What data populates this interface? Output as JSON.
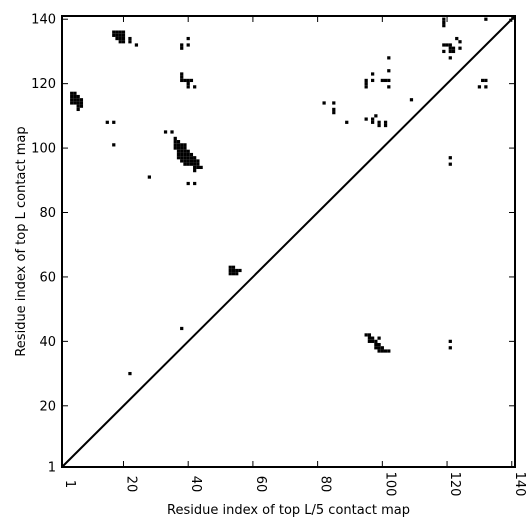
{
  "chart_data": {
    "type": "scatter",
    "title": "",
    "xlabel": "Residue index of top L/5 contact map",
    "ylabel": "Residue index of top L contact map",
    "xlim": [
      1,
      141
    ],
    "ylim": [
      1,
      141
    ],
    "x_ticks": [
      1,
      20,
      40,
      60,
      80,
      100,
      120,
      140
    ],
    "y_ticks": [
      1,
      20,
      40,
      60,
      80,
      100,
      120,
      140
    ],
    "x_tick_labels": [
      "1",
      "20",
      "40",
      "60",
      "80",
      "100",
      "120",
      "140"
    ],
    "y_tick_labels": [
      "1",
      "20",
      "40",
      "60",
      "80",
      "100",
      "120",
      "140"
    ],
    "diagonal": {
      "from": [
        1,
        1
      ],
      "to": [
        141,
        141
      ]
    },
    "grid": false,
    "legend": "none",
    "marker_color": "#000000",
    "series": [
      {
        "region": "upper-left",
        "points": [
          [
            17,
            136
          ],
          [
            18,
            136
          ],
          [
            19,
            136
          ],
          [
            20,
            136
          ],
          [
            17,
            135
          ],
          [
            18,
            135
          ],
          [
            19,
            135
          ],
          [
            20,
            135
          ],
          [
            18,
            134
          ],
          [
            19,
            134
          ],
          [
            20,
            134
          ],
          [
            22,
            134
          ],
          [
            19,
            133
          ],
          [
            20,
            133
          ],
          [
            22,
            133
          ],
          [
            24,
            132
          ],
          [
            4,
            117
          ],
          [
            5,
            117
          ],
          [
            4,
            116
          ],
          [
            5,
            116
          ],
          [
            6,
            116
          ],
          [
            4,
            115
          ],
          [
            5,
            115
          ],
          [
            6,
            115
          ],
          [
            7,
            115
          ],
          [
            4,
            114
          ],
          [
            5,
            114
          ],
          [
            6,
            114
          ],
          [
            7,
            114
          ],
          [
            6,
            113
          ],
          [
            7,
            113
          ],
          [
            6,
            112
          ],
          [
            15,
            108
          ],
          [
            17,
            108
          ],
          [
            17,
            101
          ],
          [
            28,
            91
          ],
          [
            22,
            30
          ],
          [
            33,
            105
          ],
          [
            35,
            105
          ],
          [
            36,
            103
          ],
          [
            36,
            102
          ],
          [
            37,
            102
          ],
          [
            36,
            101
          ],
          [
            37,
            101
          ],
          [
            38,
            101
          ],
          [
            39,
            101
          ],
          [
            36,
            100
          ],
          [
            37,
            100
          ],
          [
            38,
            100
          ],
          [
            39,
            100
          ],
          [
            37,
            99
          ],
          [
            38,
            99
          ],
          [
            39,
            99
          ],
          [
            40,
            99
          ],
          [
            37,
            98
          ],
          [
            38,
            98
          ],
          [
            39,
            98
          ],
          [
            40,
            98
          ],
          [
            41,
            98
          ],
          [
            37,
            97
          ],
          [
            38,
            97
          ],
          [
            39,
            97
          ],
          [
            40,
            97
          ],
          [
            41,
            97
          ],
          [
            42,
            97
          ],
          [
            38,
            96
          ],
          [
            39,
            96
          ],
          [
            40,
            96
          ],
          [
            41,
            96
          ],
          [
            42,
            96
          ],
          [
            43,
            96
          ],
          [
            39,
            95
          ],
          [
            40,
            95
          ],
          [
            41,
            95
          ],
          [
            42,
            95
          ],
          [
            43,
            95
          ],
          [
            42,
            94
          ],
          [
            43,
            94
          ],
          [
            44,
            94
          ],
          [
            42,
            93
          ],
          [
            40,
            89
          ],
          [
            42,
            89
          ],
          [
            38,
            132
          ],
          [
            38,
            131
          ],
          [
            40,
            134
          ],
          [
            40,
            132
          ],
          [
            38,
            123
          ],
          [
            38,
            122
          ],
          [
            38,
            121
          ],
          [
            39,
            121
          ],
          [
            40,
            121
          ],
          [
            41,
            121
          ],
          [
            40,
            120
          ],
          [
            40,
            119
          ],
          [
            42,
            119
          ],
          [
            38,
            44
          ],
          [
            53,
            63
          ],
          [
            54,
            63
          ],
          [
            53,
            62
          ],
          [
            54,
            62
          ],
          [
            55,
            62
          ],
          [
            56,
            62
          ],
          [
            53,
            61
          ],
          [
            54,
            61
          ],
          [
            55,
            61
          ],
          [
            82,
            114
          ],
          [
            85,
            114
          ],
          [
            85,
            112
          ],
          [
            85,
            111
          ],
          [
            89,
            108
          ],
          [
            95,
            121
          ],
          [
            95,
            120
          ],
          [
            95,
            119
          ],
          [
            97,
            123
          ],
          [
            97,
            121
          ],
          [
            102,
            128
          ],
          [
            102,
            124
          ],
          [
            100,
            121
          ],
          [
            101,
            121
          ],
          [
            102,
            121
          ],
          [
            102,
            119
          ],
          [
            109,
            115
          ],
          [
            95,
            109
          ],
          [
            97,
            109
          ],
          [
            98,
            110
          ],
          [
            97,
            108
          ],
          [
            99,
            108
          ],
          [
            99,
            107
          ],
          [
            101,
            108
          ],
          [
            101,
            107
          ],
          [
            119,
            140
          ],
          [
            119,
            139
          ],
          [
            119,
            138
          ],
          [
            132,
            140
          ],
          [
            119,
            132
          ],
          [
            120,
            132
          ],
          [
            121,
            132
          ],
          [
            121,
            131
          ],
          [
            122,
            131
          ],
          [
            121,
            130
          ],
          [
            122,
            130
          ],
          [
            119,
            130
          ],
          [
            123,
            134
          ],
          [
            124,
            133
          ],
          [
            124,
            131
          ],
          [
            121,
            128
          ],
          [
            131,
            121
          ],
          [
            132,
            121
          ],
          [
            130,
            119
          ],
          [
            132,
            119
          ],
          [
            121,
            97
          ],
          [
            121,
            95
          ]
        ]
      },
      {
        "region": "lower-right",
        "points": [
          [
            95,
            42
          ],
          [
            96,
            42
          ],
          [
            96,
            41
          ],
          [
            97,
            41
          ],
          [
            96,
            40
          ],
          [
            97,
            40
          ],
          [
            98,
            40
          ],
          [
            99,
            41
          ],
          [
            98,
            39
          ],
          [
            99,
            39
          ],
          [
            98,
            38
          ],
          [
            99,
            38
          ],
          [
            100,
            38
          ],
          [
            99,
            37
          ],
          [
            100,
            37
          ],
          [
            101,
            37
          ],
          [
            102,
            37
          ],
          [
            121,
            40
          ],
          [
            121,
            38
          ]
        ]
      }
    ]
  }
}
